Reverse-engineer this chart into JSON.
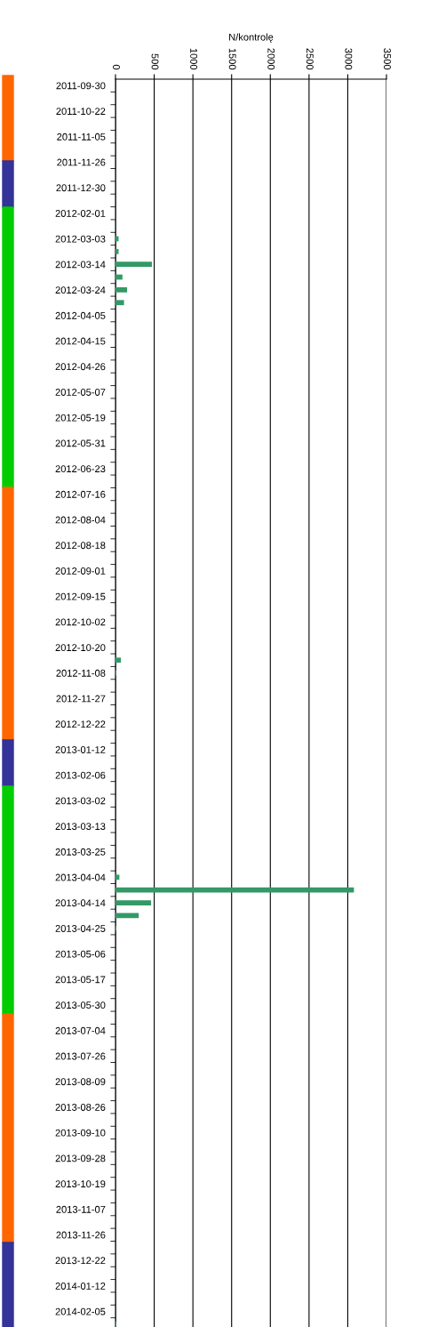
{
  "chart_data": {
    "type": "bar",
    "orientation": "horizontal",
    "xlabel": "N/kontrolę",
    "color": "#339966",
    "categories": [
      "2011-09-30",
      null,
      "2011-10-22",
      null,
      "2011-11-05",
      null,
      "2011-11-26",
      null,
      "2011-12-30",
      null,
      "2012-02-01",
      null,
      "2012-03-03",
      null,
      "2012-03-14",
      null,
      "2012-03-24",
      null,
      "2012-04-05",
      null,
      "2012-04-15",
      null,
      "2012-04-26",
      null,
      "2012-05-07",
      null,
      "2012-05-19",
      null,
      "2012-05-31",
      null,
      "2012-06-23",
      null,
      "2012-07-16",
      null,
      "2012-08-04",
      null,
      "2012-08-18",
      null,
      "2012-09-01",
      null,
      "2012-09-15",
      null,
      "2012-10-02",
      null,
      "2012-10-20",
      null,
      "2012-11-08",
      null,
      "2012-11-27",
      null,
      "2012-12-22",
      null,
      "2013-01-12",
      null,
      "2013-02-06",
      null,
      "2013-03-02",
      null,
      "2013-03-13",
      null,
      "2013-03-25",
      null,
      "2013-04-04",
      null,
      "2013-04-14",
      null,
      "2013-04-25",
      null,
      "2013-05-06",
      null,
      "2013-05-17",
      null,
      "2013-05-30",
      null,
      "2013-07-04",
      null,
      "2013-07-26",
      null,
      "2013-08-09",
      null,
      "2013-08-26",
      null,
      "2013-09-10",
      null,
      "2013-09-28",
      null,
      "2013-10-19",
      null,
      "2013-11-07",
      null,
      "2013-11-26",
      null,
      "2013-12-22",
      null,
      "2014-01-12",
      null,
      "2014-02-05",
      null
    ],
    "values": [
      0,
      0,
      0,
      0,
      0,
      0,
      0,
      0,
      0,
      0,
      0,
      0,
      40,
      40,
      470,
      90,
      150,
      110,
      0,
      0,
      0,
      0,
      0,
      0,
      0,
      0,
      0,
      0,
      0,
      0,
      0,
      0,
      0,
      0,
      0,
      0,
      0,
      0,
      0,
      0,
      0,
      0,
      0,
      0,
      0,
      70,
      10,
      0,
      0,
      0,
      0,
      0,
      0,
      0,
      0,
      0,
      0,
      0,
      0,
      0,
      0,
      0,
      50,
      3080,
      460,
      300,
      10,
      0,
      0,
      0,
      0,
      0,
      0,
      0,
      0,
      0,
      0,
      0,
      0,
      0,
      0,
      0,
      0,
      0,
      0,
      0,
      0,
      0,
      0,
      0,
      0,
      0,
      0,
      0,
      0,
      0,
      0,
      10
    ],
    "xlim": [
      0,
      3500
    ],
    "xticks": [
      0,
      500,
      1000,
      1500,
      2000,
      2500,
      3000,
      3500
    ],
    "grid": "x"
  }
}
